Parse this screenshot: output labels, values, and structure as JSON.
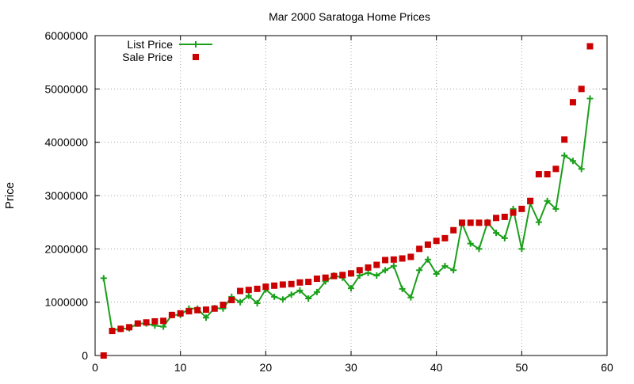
{
  "chart_data": {
    "type": "line",
    "title": "Mar 2000 Saratoga Home Prices",
    "xlabel": "",
    "ylabel": "Price",
    "xlim": [
      0,
      60
    ],
    "ylim": [
      0,
      6000000
    ],
    "x_ticks": [
      0,
      10,
      20,
      30,
      40,
      50,
      60
    ],
    "y_ticks": [
      0,
      1000000,
      2000000,
      3000000,
      4000000,
      5000000,
      6000000
    ],
    "grid": true,
    "legend_position": "top-left",
    "series": [
      {
        "name": "List Price",
        "kind": "line",
        "marker": "plus",
        "color": "#1aa01a",
        "x": [
          1,
          2,
          3,
          4,
          5,
          6,
          7,
          8,
          9,
          10,
          11,
          12,
          13,
          14,
          15,
          16,
          17,
          18,
          19,
          20,
          21,
          22,
          23,
          24,
          25,
          26,
          27,
          28,
          29,
          30,
          31,
          32,
          33,
          34,
          35,
          36,
          37,
          38,
          39,
          40,
          41,
          42,
          43,
          44,
          45,
          46,
          47,
          48,
          49,
          50,
          51,
          52,
          53,
          54,
          55,
          56,
          57,
          58
        ],
        "y": [
          1450000,
          470000,
          500000,
          510000,
          600000,
          600000,
          560000,
          540000,
          760000,
          760000,
          880000,
          880000,
          710000,
          890000,
          880000,
          1100000,
          1000000,
          1120000,
          980000,
          1240000,
          1100000,
          1050000,
          1140000,
          1220000,
          1070000,
          1190000,
          1390000,
          1500000,
          1460000,
          1260000,
          1500000,
          1550000,
          1500000,
          1600000,
          1680000,
          1250000,
          1090000,
          1600000,
          1800000,
          1530000,
          1680000,
          1600000,
          2480000,
          2100000,
          2000000,
          2500000,
          2300000,
          2200000,
          2750000,
          2000000,
          2850000,
          2500000,
          2900000,
          2750000,
          3750000,
          3650000,
          3500000,
          4820000
        ]
      },
      {
        "name": "Sale Price",
        "kind": "scatter",
        "marker": "square",
        "color": "#cc0000",
        "x": [
          1,
          2,
          3,
          4,
          5,
          6,
          7,
          8,
          9,
          10,
          11,
          12,
          13,
          14,
          15,
          16,
          17,
          18,
          19,
          20,
          21,
          22,
          23,
          24,
          25,
          26,
          27,
          28,
          29,
          30,
          31,
          32,
          33,
          34,
          35,
          36,
          37,
          38,
          39,
          40,
          41,
          42,
          43,
          44,
          45,
          46,
          47,
          48,
          49,
          50,
          51,
          52,
          53,
          54,
          55,
          56,
          57,
          58
        ],
        "y": [
          0,
          460000,
          500000,
          530000,
          600000,
          620000,
          640000,
          650000,
          760000,
          790000,
          830000,
          850000,
          860000,
          880000,
          950000,
          1040000,
          1210000,
          1230000,
          1250000,
          1290000,
          1310000,
          1330000,
          1340000,
          1370000,
          1380000,
          1440000,
          1460000,
          1490000,
          1510000,
          1540000,
          1600000,
          1650000,
          1700000,
          1790000,
          1800000,
          1820000,
          1850000,
          2000000,
          2080000,
          2150000,
          2200000,
          2350000,
          2490000,
          2490000,
          2490000,
          2490000,
          2580000,
          2600000,
          2680000,
          2750000,
          2900000,
          3400000,
          3400000,
          3500000,
          4050000,
          4750000,
          5000000,
          5800000
        ]
      }
    ]
  }
}
